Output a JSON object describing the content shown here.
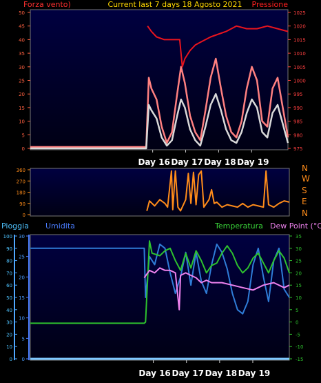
{
  "header": {
    "left_label": "Forza vento)",
    "center_title": "Current last 7 days 18 Agosto 2021",
    "right_label": "Pressione"
  },
  "compass": [
    "N",
    "W",
    "S",
    "E",
    "N"
  ],
  "bottom_header": {
    "pioggia": "Pioggia",
    "umidita": "Umidita",
    "temperatura": "Temperatura",
    "dewpoint": "Dew Point (°C)"
  },
  "colors": {
    "background": "#000000",
    "plot_top": "#000033",
    "plot_bottom": "#00001a",
    "wind_gust": "#ff8080",
    "wind_avg": "#d9d9d9",
    "pressure": "#e8141e",
    "direction": "#ff8c1a",
    "rain": "#2196f3",
    "humidity": "#2f7dd8",
    "temperature": "#2ec22e",
    "dewpoint": "#ee82ee",
    "rain_axis": "#4fa8ff"
  },
  "chart_data": [
    {
      "type": "line",
      "name": "wind-pressure",
      "x_ticks": [
        "Day 16",
        "Day 17",
        "Day 18",
        "Day 19"
      ],
      "y_left": {
        "min": 0,
        "max": 50,
        "ticks": [
          "0",
          "5",
          "10",
          "15",
          "20",
          "25",
          "30",
          "35",
          "40",
          "45",
          "50"
        ]
      },
      "y_right": {
        "min": 975,
        "max": 1025,
        "ticks": [
          "975",
          "980",
          "985",
          "990",
          "995",
          "1000",
          "1005",
          "1010",
          "1015",
          "1020",
          "1025"
        ]
      },
      "series": [
        {
          "key": "gust",
          "axis": "left",
          "x": [
            0,
            0.45,
            0.46,
            0.47,
            0.49,
            0.51,
            0.53,
            0.55,
            0.57,
            0.585,
            0.6,
            0.62,
            0.64,
            0.66,
            0.68,
            0.7,
            0.72,
            0.74,
            0.76,
            0.78,
            0.8,
            0.82,
            0.84,
            0.86,
            0.88,
            0.9,
            0.92,
            0.94,
            0.96,
            0.98,
            1
          ],
          "y": [
            0.5,
            0.5,
            26,
            22,
            18,
            8,
            2,
            6,
            20,
            30,
            24,
            12,
            6,
            3,
            14,
            26,
            33,
            22,
            12,
            6,
            4,
            10,
            22,
            30,
            25,
            10,
            8,
            22,
            26,
            15,
            4
          ]
        },
        {
          "key": "avg",
          "axis": "left",
          "x": [
            0,
            0.45,
            0.46,
            0.47,
            0.49,
            0.51,
            0.53,
            0.55,
            0.57,
            0.585,
            0.6,
            0.62,
            0.64,
            0.66,
            0.68,
            0.7,
            0.72,
            0.74,
            0.76,
            0.78,
            0.8,
            0.82,
            0.84,
            0.86,
            0.88,
            0.9,
            0.92,
            0.94,
            0.96,
            0.98,
            1
          ],
          "y": [
            0,
            0,
            16,
            14,
            11,
            4,
            1,
            3,
            12,
            18,
            15,
            7,
            3,
            1,
            8,
            16,
            20,
            14,
            7,
            3,
            2,
            6,
            13,
            18,
            15,
            6,
            4,
            13,
            16,
            9,
            2
          ]
        },
        {
          "key": "pressure",
          "axis": "right",
          "x": [
            0.455,
            0.47,
            0.49,
            0.52,
            0.55,
            0.58,
            0.59,
            0.6,
            0.62,
            0.64,
            0.66,
            0.68,
            0.7,
            0.73,
            0.76,
            0.8,
            0.84,
            0.88,
            0.92,
            0.96,
            1
          ],
          "y": [
            1020,
            1018,
            1016,
            1015,
            1015,
            1015,
            1005,
            1008,
            1011,
            1013,
            1014,
            1015,
            1016,
            1017,
            1018,
            1020,
            1019,
            1019,
            1020,
            1019,
            1018
          ]
        }
      ]
    },
    {
      "type": "line",
      "name": "wind-direction",
      "x_ticks": [
        "Day 16",
        "Day 17",
        "Day 18",
        "Day 19"
      ],
      "y": {
        "min": 0,
        "max": 360,
        "ticks": [
          "0",
          "90",
          "180",
          "270",
          "360"
        ]
      },
      "series": [
        {
          "key": "direction",
          "x": [
            0.45,
            0.46,
            0.48,
            0.5,
            0.52,
            0.53,
            0.545,
            0.55,
            0.56,
            0.57,
            0.58,
            0.6,
            0.61,
            0.62,
            0.63,
            0.64,
            0.65,
            0.66,
            0.67,
            0.69,
            0.7,
            0.71,
            0.72,
            0.74,
            0.76,
            0.78,
            0.8,
            0.82,
            0.84,
            0.86,
            0.88,
            0.9,
            0.91,
            0.92,
            0.94,
            0.96,
            0.98,
            1
          ],
          "y": [
            30,
            110,
            70,
            120,
            90,
            60,
            350,
            40,
            350,
            60,
            30,
            120,
            330,
            90,
            340,
            80,
            320,
            350,
            60,
            120,
            200,
            90,
            100,
            60,
            80,
            70,
            60,
            90,
            60,
            80,
            70,
            60,
            350,
            80,
            60,
            90,
            110,
            100
          ]
        }
      ]
    },
    {
      "type": "line",
      "name": "rain-humidity-temperature",
      "x_ticks": [
        "Day 16",
        "Day 17",
        "Day 18",
        "Day 19"
      ],
      "y_rain": {
        "min": 0,
        "max": 100,
        "ticks": [
          "0",
          "10",
          "20",
          "30",
          "40",
          "50",
          "60",
          "70",
          "80",
          "90",
          "100"
        ]
      },
      "y_humidity": {
        "min": 0,
        "max": 30,
        "ticks": [
          "0",
          "5",
          "10",
          "15",
          "20",
          "25",
          "30"
        ]
      },
      "y_temperature": {
        "min": -15,
        "max": 35,
        "ticks": [
          "-15",
          "-10",
          "-5",
          "0",
          "5",
          "10",
          "15",
          "20",
          "25",
          "30",
          "35"
        ]
      },
      "series": [
        {
          "key": "rain",
          "axis": "rain",
          "x": [
            0,
            0.44,
            0.441,
            0.58,
            0.581,
            0.66,
            0.661,
            1
          ],
          "y": [
            0,
            0,
            0,
            0,
            0,
            0,
            0,
            0
          ]
        },
        {
          "key": "humidity",
          "axis": "humidity",
          "x": [
            0,
            0.44,
            0.445,
            0.46,
            0.48,
            0.5,
            0.52,
            0.54,
            0.56,
            0.58,
            0.6,
            0.62,
            0.64,
            0.66,
            0.68,
            0.7,
            0.72,
            0.74,
            0.76,
            0.78,
            0.8,
            0.82,
            0.84,
            0.86,
            0.88,
            0.9,
            0.92,
            0.94,
            0.96,
            0.98,
            1
          ],
          "y": [
            27,
            27,
            15,
            25,
            23,
            28,
            27,
            21,
            16,
            20,
            26,
            18,
            26,
            19,
            16,
            23,
            28,
            26,
            22,
            16,
            12,
            11,
            14,
            23,
            27,
            20,
            14,
            24,
            27,
            17,
            15
          ]
        },
        {
          "key": "temperature",
          "axis": "temperature",
          "x": [
            0,
            0.44,
            0.445,
            0.46,
            0.47,
            0.5,
            0.52,
            0.54,
            0.56,
            0.58,
            0.6,
            0.62,
            0.64,
            0.66,
            0.68,
            0.7,
            0.72,
            0.74,
            0.76,
            0.78,
            0.8,
            0.82,
            0.84,
            0.86,
            0.88,
            0.9,
            0.92,
            0.94,
            0.96,
            0.98,
            1
          ],
          "y": [
            -0.5,
            -0.5,
            0,
            33,
            28,
            27,
            29,
            30,
            25,
            21,
            28,
            22,
            29,
            25,
            20,
            23,
            24,
            28,
            31,
            28,
            23,
            20,
            22,
            26,
            28,
            24,
            20,
            25,
            29,
            26,
            20
          ]
        },
        {
          "key": "dewpoint",
          "axis": "temperature",
          "x": [
            0.44,
            0.46,
            0.48,
            0.5,
            0.52,
            0.54,
            0.56,
            0.575,
            0.58,
            0.6,
            0.62,
            0.64,
            0.66,
            0.68,
            0.7,
            0.74,
            0.78,
            0.82,
            0.86,
            0.9,
            0.94,
            0.98,
            1
          ],
          "y": [
            18,
            21,
            20,
            22,
            21,
            21,
            20,
            5,
            19,
            20,
            19,
            18,
            16,
            17,
            16,
            16,
            15,
            14,
            13,
            15,
            16,
            14,
            15
          ]
        }
      ]
    }
  ]
}
